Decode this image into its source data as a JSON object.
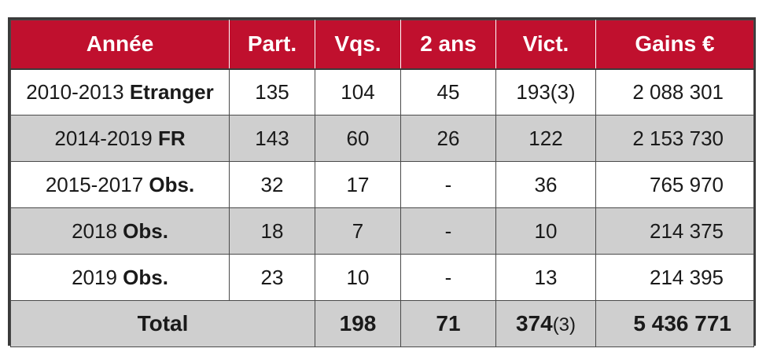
{
  "table": {
    "headers": [
      "Année",
      "Part.",
      "Vqs.",
      "2 ans",
      "Vict.",
      "Gains €"
    ],
    "rows": [
      {
        "period": "2010-2013",
        "category": "Etranger",
        "part": "135",
        "vqs": "104",
        "deux_ans": "45",
        "vict": "193(3)",
        "gains": "2 088 301"
      },
      {
        "period": "2014-2019",
        "category": "FR",
        "part": "143",
        "vqs": "60",
        "deux_ans": "26",
        "vict": "122",
        "gains": "2 153 730"
      },
      {
        "period": "2015-2017",
        "category": "Obs.",
        "part": "32",
        "vqs": "17",
        "deux_ans": "-",
        "vict": "36",
        "gains": "765 970"
      },
      {
        "period": "2018",
        "category": "Obs.",
        "part": "18",
        "vqs": "7",
        "deux_ans": "-",
        "vict": "10",
        "gains": "214 375"
      },
      {
        "period": "2019",
        "category": "Obs.",
        "part": "23",
        "vqs": "10",
        "deux_ans": "-",
        "vict": "13",
        "gains": "214 395"
      }
    ],
    "total": {
      "label": "Total",
      "vqs": "198",
      "deux_ans": "71",
      "vict_main": "374",
      "vict_suffix": "(3)",
      "gains": "5 436 771"
    }
  },
  "colors": {
    "header_bg": "#c0102e",
    "header_text": "#ffffff",
    "shaded_row": "#cfcfcf",
    "border": "#3a3a3a"
  }
}
